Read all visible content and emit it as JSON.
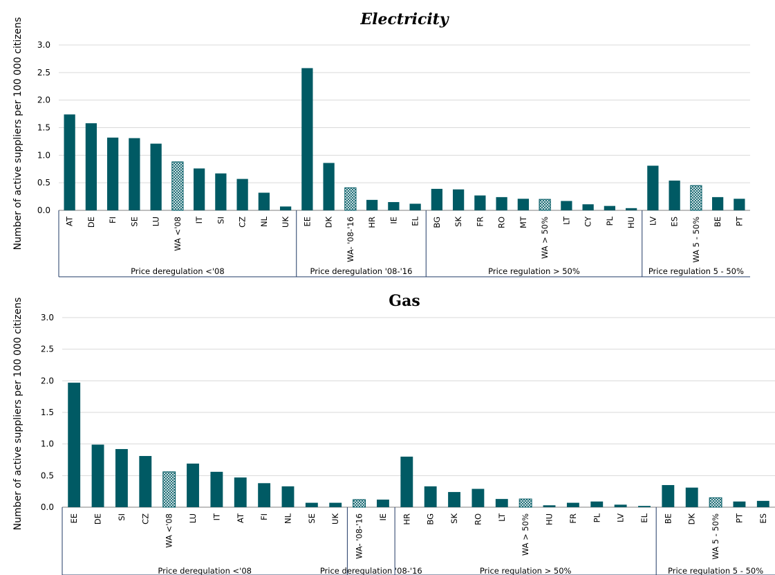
{
  "colors": {
    "bar": "#005a64",
    "wa_fill": "#ffffff",
    "grid": "#d9d9d9",
    "axis": "#7f7f7f",
    "group_line": "#1f3864"
  },
  "chart_data": [
    {
      "type": "bar",
      "title": "Electricity",
      "ylabel": "Number of active suppliers per 100 000 citizens",
      "ylim": [
        0,
        3.0
      ],
      "yticks": [
        "0.0",
        "0.5",
        "1.0",
        "1.5",
        "2.0",
        "2.5",
        "3.0"
      ],
      "grid": true,
      "categories": [
        "AT",
        "DE",
        "FI",
        "SE",
        "LU",
        "WA <'08",
        "IT",
        "SI",
        "CZ",
        "NL",
        "UK",
        "EE",
        "DK",
        "WA- '08-'16",
        "HR",
        "IE",
        "EL",
        "BG",
        "SK",
        "FR",
        "RO",
        "MT",
        "WA > 50%",
        "LT",
        "CY",
        "PL",
        "HU",
        "LV",
        "ES",
        "WA 5 - 50%",
        "BE",
        "PT"
      ],
      "values": [
        1.74,
        1.58,
        1.32,
        1.31,
        1.21,
        0.88,
        0.76,
        0.67,
        0.57,
        0.32,
        0.07,
        2.58,
        0.86,
        0.41,
        0.19,
        0.15,
        0.12,
        0.39,
        0.38,
        0.27,
        0.24,
        0.21,
        0.2,
        0.17,
        0.11,
        0.08,
        0.04,
        0.81,
        0.54,
        0.45,
        0.24,
        0.21
      ],
      "weighted_average": [
        false,
        false,
        false,
        false,
        false,
        true,
        false,
        false,
        false,
        false,
        false,
        false,
        false,
        true,
        false,
        false,
        false,
        false,
        false,
        false,
        false,
        false,
        true,
        false,
        false,
        false,
        false,
        false,
        false,
        true,
        false,
        false
      ],
      "groups": [
        {
          "label": "Price deregulation <'08",
          "start": 0,
          "end": 10
        },
        {
          "label": "Price deregulation '08-'16",
          "start": 11,
          "end": 16
        },
        {
          "label": "Price regulation > 50%",
          "start": 17,
          "end": 26
        },
        {
          "label": "Price regulation 5 - 50%",
          "start": 27,
          "end": 31
        }
      ]
    },
    {
      "type": "bar",
      "title": "Gas",
      "ylabel": "Number of active suppliers per 100 000 citizens",
      "ylim": [
        0,
        3.0
      ],
      "yticks": [
        "0.0",
        "0.5",
        "1.0",
        "1.5",
        "2.0",
        "2.5",
        "3.0"
      ],
      "grid": true,
      "categories": [
        "EE",
        "DE",
        "SI",
        "CZ",
        "WA <'08",
        "LU",
        "IT",
        "AT",
        "FI",
        "NL",
        "SE",
        "UK",
        "WA- '08-'16",
        "IE",
        "HR",
        "BG",
        "SK",
        "RO",
        "LT",
        "WA > 50%",
        "HU",
        "FR",
        "PL",
        "LV",
        "EL",
        "BE",
        "DK",
        "WA 5 - 50%",
        "PT",
        "ES"
      ],
      "values": [
        1.97,
        0.99,
        0.92,
        0.81,
        0.56,
        0.69,
        0.56,
        0.47,
        0.38,
        0.33,
        0.07,
        0.07,
        0.12,
        0.12,
        0.8,
        0.33,
        0.24,
        0.29,
        0.13,
        0.13,
        0.03,
        0.07,
        0.09,
        0.04,
        0.02,
        0.35,
        0.31,
        0.15,
        0.09,
        0.1
      ],
      "weighted_average": [
        false,
        false,
        false,
        false,
        true,
        false,
        false,
        false,
        false,
        false,
        false,
        false,
        true,
        false,
        false,
        false,
        false,
        false,
        false,
        true,
        false,
        false,
        false,
        false,
        false,
        false,
        false,
        true,
        false,
        false
      ],
      "groups": [
        {
          "label": "Price deregulation <'08",
          "start": 0,
          "end": 11
        },
        {
          "label": "Price deregulation '08-'16",
          "start": 12,
          "end": 13
        },
        {
          "label": "Price regulation > 50%",
          "start": 14,
          "end": 24
        },
        {
          "label": "Price regulation 5 - 50%",
          "start": 25,
          "end": 29
        }
      ]
    }
  ]
}
